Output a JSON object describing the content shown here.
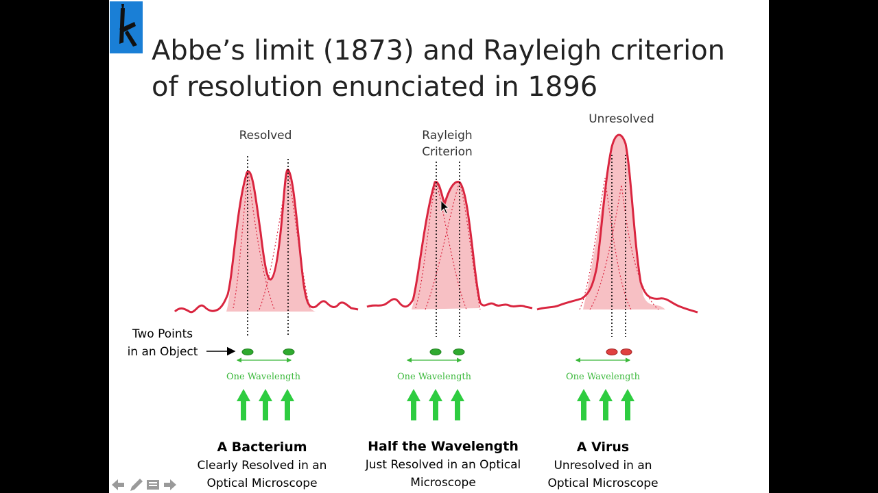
{
  "title_line1": "Abbe’s limit (1873) and Rayleigh criterion",
  "title_line2": "of resolution enunciated in 1896",
  "two_points_line1": "Two Points",
  "two_points_line2": "in an Object",
  "panels": [
    {
      "heading": "Resolved",
      "wavelength_label": "One Wavelength",
      "caption_title": "A Bacterium",
      "caption_line1": "Clearly Resolved in an",
      "caption_line2": "Optical Microscope",
      "dot_color": "#2faa2f"
    },
    {
      "heading_line1": "Rayleigh",
      "heading_line2": "Criterion",
      "wavelength_label": "One Wavelength",
      "caption_title": "Half the Wavelength",
      "caption_line1": "Just Resolved in an Optical",
      "caption_line2": "Microscope",
      "dot_color": "#2faa2f"
    },
    {
      "heading": "Unresolved",
      "wavelength_label": "One Wavelength",
      "caption_title": "A Virus",
      "caption_line1": "Unresolved in an",
      "caption_line2": "Optical Microscope",
      "dot_color": "#e04040"
    }
  ],
  "colors": {
    "curve": "#d9253f",
    "fill": "#f7c0c4",
    "arrow": "#2ecc40",
    "wavelength_text": "#3ab83a",
    "logo_bg": "#1a7fd6"
  },
  "icons": [
    "back-arrow-icon",
    "pen-icon",
    "slides-menu-icon",
    "forward-arrow-icon"
  ]
}
